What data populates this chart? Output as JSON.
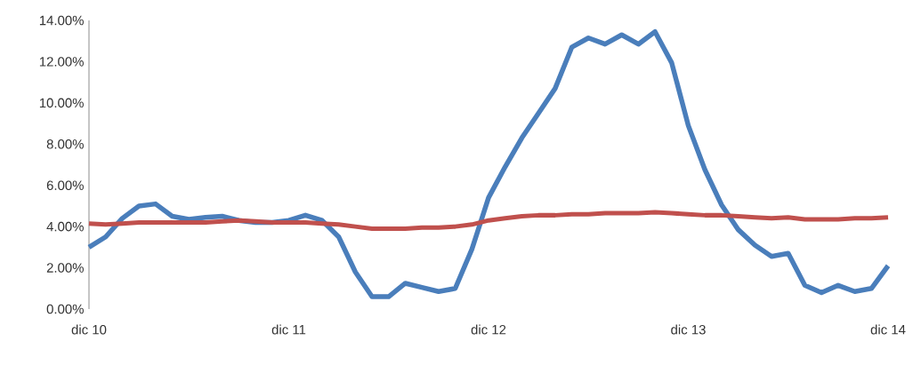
{
  "chart_data": {
    "type": "line",
    "x": [
      "2010-12",
      "2011-01",
      "2011-02",
      "2011-03",
      "2011-04",
      "2011-05",
      "2011-06",
      "2011-07",
      "2011-08",
      "2011-09",
      "2011-10",
      "2011-11",
      "2011-12",
      "2012-01",
      "2012-02",
      "2012-03",
      "2012-04",
      "2012-05",
      "2012-06",
      "2012-07",
      "2012-08",
      "2012-09",
      "2012-10",
      "2012-11",
      "2012-12",
      "2013-01",
      "2013-02",
      "2013-03",
      "2013-04",
      "2013-05",
      "2013-06",
      "2013-07",
      "2013-08",
      "2013-09",
      "2013-10",
      "2013-11",
      "2013-12",
      "2014-01",
      "2014-02",
      "2014-03",
      "2014-04",
      "2014-05",
      "2014-06",
      "2014-07",
      "2014-08",
      "2014-09",
      "2014-10",
      "2014-11",
      "2014-12"
    ],
    "series": [
      {
        "color": "#4a7ebb",
        "values": [
          3.0,
          3.5,
          4.4,
          5.0,
          5.1,
          4.5,
          4.35,
          4.45,
          4.5,
          4.3,
          4.2,
          4.2,
          4.3,
          4.55,
          4.3,
          3.5,
          1.8,
          0.6,
          0.6,
          1.25,
          1.05,
          0.85,
          1.0,
          2.9,
          5.4,
          6.9,
          8.3,
          9.5,
          10.7,
          12.7,
          13.15,
          12.85,
          13.3,
          12.85,
          13.45,
          11.95,
          8.9,
          6.75,
          5.05,
          3.85,
          3.1,
          2.55,
          2.7,
          1.15,
          0.8,
          1.15,
          0.85,
          1.0,
          2.1
        ]
      },
      {
        "color": "#c0504d",
        "values": [
          4.15,
          4.1,
          4.15,
          4.2,
          4.2,
          4.2,
          4.2,
          4.2,
          4.25,
          4.3,
          4.25,
          4.2,
          4.2,
          4.2,
          4.15,
          4.1,
          4.0,
          3.9,
          3.9,
          3.9,
          3.95,
          3.95,
          4.0,
          4.1,
          4.3,
          4.4,
          4.5,
          4.55,
          4.55,
          4.6,
          4.6,
          4.65,
          4.65,
          4.65,
          4.7,
          4.65,
          4.6,
          4.55,
          4.55,
          4.5,
          4.45,
          4.4,
          4.45,
          4.35,
          4.35,
          4.35,
          4.4,
          4.4,
          4.45
        ]
      }
    ],
    "xlim": [
      "2010-12",
      "2014-12"
    ],
    "xticks": [
      {
        "value": "2010-12",
        "label": "dic 10"
      },
      {
        "value": "2011-12",
        "label": "dic 11"
      },
      {
        "value": "2012-12",
        "label": "dic 12"
      },
      {
        "value": "2013-12",
        "label": "dic 13"
      },
      {
        "value": "2014-12",
        "label": "dic 14"
      }
    ],
    "ylim": [
      0,
      14
    ],
    "yticks": [
      {
        "value": 0,
        "label": "0.00%"
      },
      {
        "value": 2,
        "label": "2.00%"
      },
      {
        "value": 4,
        "label": "4.00%"
      },
      {
        "value": 6,
        "label": "6.00%"
      },
      {
        "value": 8,
        "label": "8.00%"
      },
      {
        "value": 10,
        "label": "10.00%"
      },
      {
        "value": 12,
        "label": "12.00%"
      },
      {
        "value": 14,
        "label": "14.00%"
      }
    ],
    "grid": false,
    "legend": false,
    "marker": "none",
    "line_style": "solid"
  }
}
